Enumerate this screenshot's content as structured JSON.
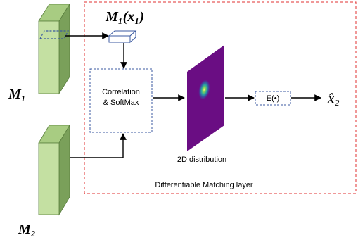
{
  "labels": {
    "m1_xi": "M₁(x₁)",
    "m1": "M₁",
    "m2": "M₂",
    "correlation_line1": "Correlation",
    "correlation_line2": "& SoftMax",
    "expectation": "E(•)",
    "output": "x̂₂",
    "distribution": "2D distribution",
    "matching_layer": "Differentiable Matching layer"
  },
  "colors": {
    "feature_front": "#c4e0a2",
    "feature_side": "#7aa05a",
    "feature_edge": "#5a7f3e",
    "dashed_box": "#3b5aa0",
    "red_dashed": "#e03030",
    "distribution_bg": "#6a0d83",
    "text": "#000000"
  }
}
